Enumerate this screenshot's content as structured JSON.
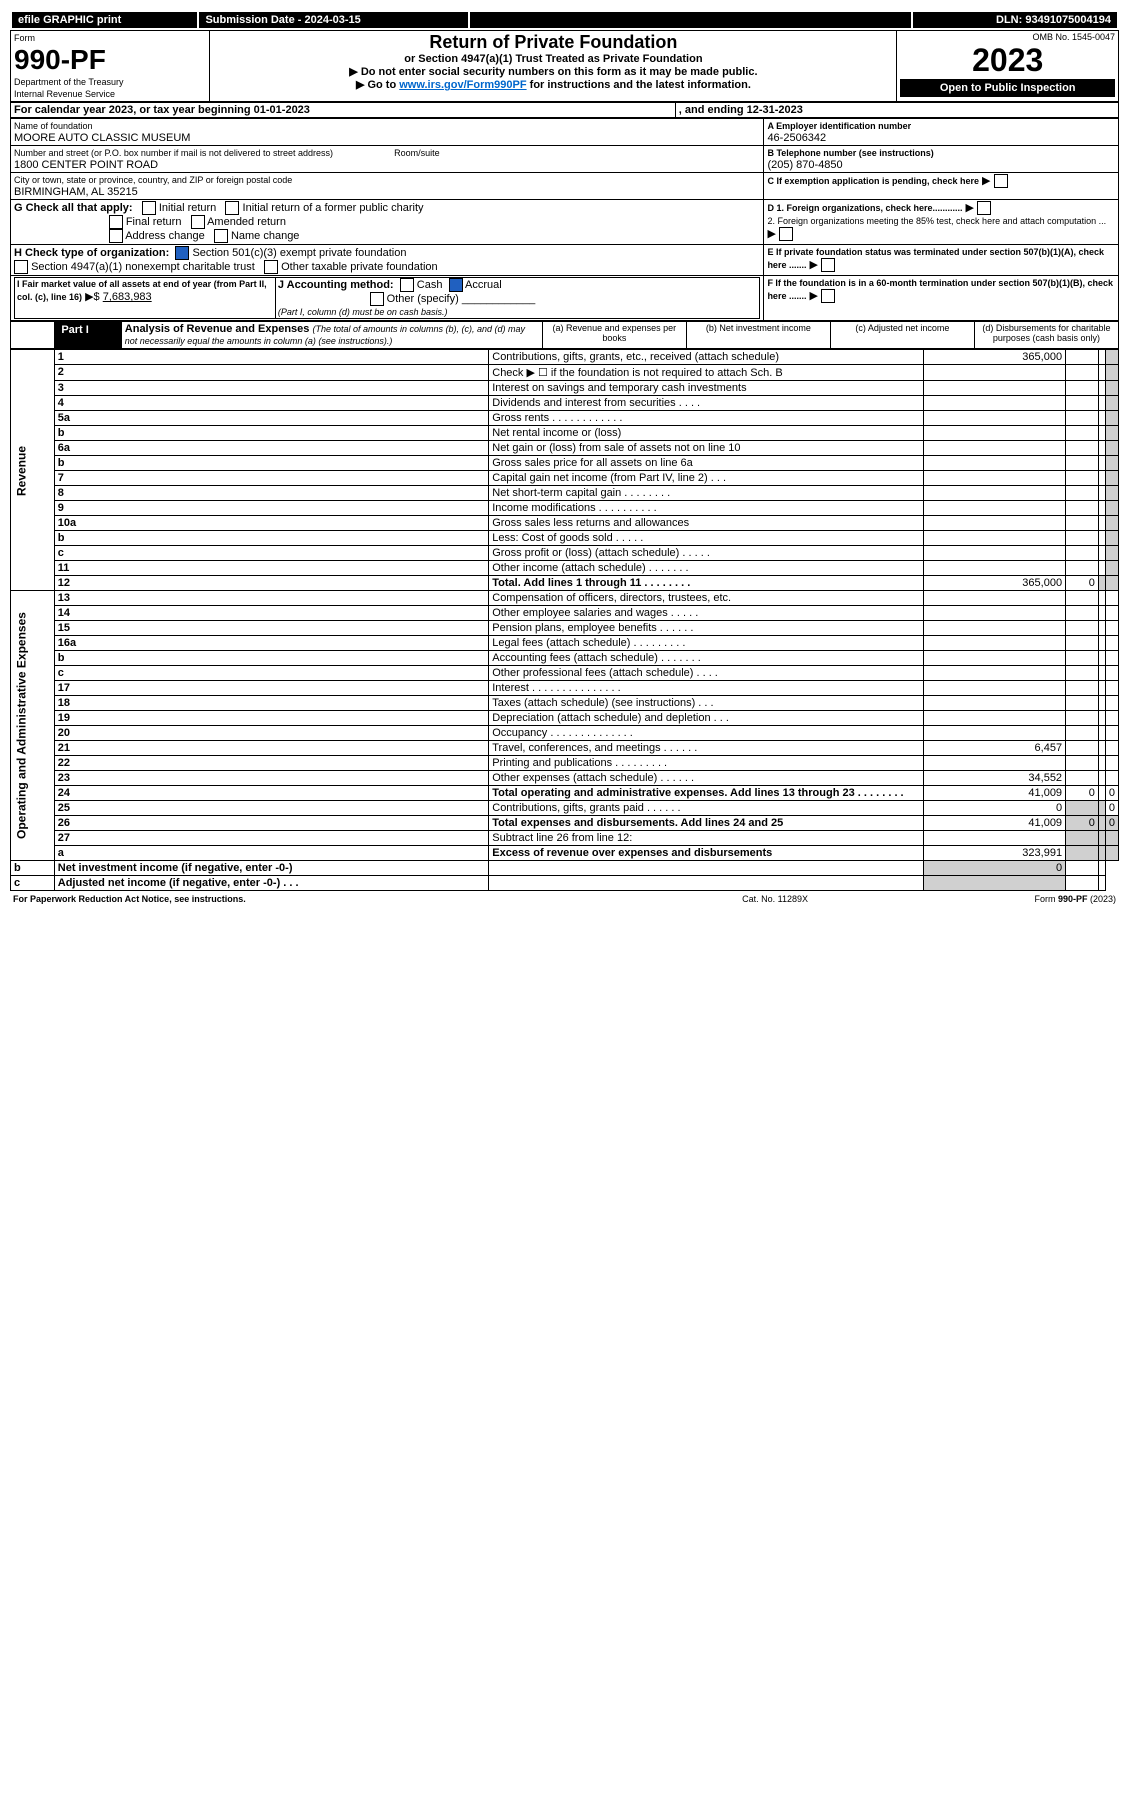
{
  "header": {
    "efile": "efile GRAPHIC print",
    "submission": "Submission Date - 2024-03-15",
    "dln": "DLN: 93491075004194",
    "omb": "OMB No. 1545-0047",
    "form_word": "Form",
    "form_number": "990-PF",
    "dept": "Department of the Treasury",
    "irs": "Internal Revenue Service",
    "title": "Return of Private Foundation",
    "subtitle": "or Section 4947(a)(1) Trust Treated as Private Foundation",
    "instr1": "▶ Do not enter social security numbers on this form as it may be made public.",
    "instr2_a": "▶ Go to ",
    "instr2_link": "www.irs.gov/Form990PF",
    "instr2_b": " for instructions and the latest information.",
    "year": "2023",
    "open": "Open to Public Inspection"
  },
  "cal": {
    "label": "For calendar year 2023, or tax year beginning 01-01-2023",
    "ending": ", and ending 12-31-2023"
  },
  "name": {
    "label": "Name of foundation",
    "value": "MOORE AUTO CLASSIC MUSEUM"
  },
  "ein": {
    "label": "A Employer identification number",
    "value": "46-2506342"
  },
  "address": {
    "street_label": "Number and street (or P.O. box number if mail is not delivered to street address)",
    "street": "1800 CENTER POINT ROAD",
    "room_label": "Room/suite",
    "city_label": "City or town, state or province, country, and ZIP or foreign postal code",
    "city": "BIRMINGHAM, AL  35215"
  },
  "tel": {
    "label": "B Telephone number (see instructions)",
    "value": "(205) 870-4850"
  },
  "C": "C If exemption application is pending, check here",
  "G": {
    "label": "G Check all that apply:",
    "initial": "Initial return",
    "initial_pc": "Initial return of a former public charity",
    "final": "Final return",
    "amended": "Amended return",
    "addr": "Address change",
    "name": "Name change"
  },
  "D": {
    "d1": "D 1. Foreign organizations, check here............",
    "d2": "2. Foreign organizations meeting the 85% test, check here and attach computation ..."
  },
  "H": {
    "label": "H Check type of organization:",
    "opt1": "Section 501(c)(3) exempt private foundation",
    "opt2": "Section 4947(a)(1) nonexempt charitable trust",
    "opt3": "Other taxable private foundation"
  },
  "E": "E If private foundation status was terminated under section 507(b)(1)(A), check here .......",
  "I": {
    "label": "I Fair market value of all assets at end of year (from Part II, col. (c), line 16)",
    "value": "7,683,983"
  },
  "J": {
    "label": "J Accounting method:",
    "cash": "Cash",
    "accrual": "Accrual",
    "other": "Other (specify)",
    "note": "(Part I, column (d) must be on cash basis.)"
  },
  "F": "F If the foundation is in a 60-month termination under section 507(b)(1)(B), check here .......",
  "partI": {
    "label": "Part I",
    "title": "Analysis of Revenue and Expenses",
    "desc": "(The total of amounts in columns (b), (c), and (d) may not necessarily equal the amounts in column (a) (see instructions).)",
    "col_a": "(a) Revenue and expenses per books",
    "col_b": "(b) Net investment income",
    "col_c": "(c) Adjusted net income",
    "col_d": "(d) Disbursements for charitable purposes (cash basis only)"
  },
  "sidebar": {
    "rev": "Revenue",
    "exp": "Operating and Administrative Expenses"
  },
  "rows": [
    {
      "n": "1",
      "txt": "Contributions, gifts, grants, etc., received (attach schedule)",
      "a": "365,000"
    },
    {
      "n": "2",
      "txt": "Check ▶ ☐ if the foundation is not required to attach Sch. B"
    },
    {
      "n": "3",
      "txt": "Interest on savings and temporary cash investments"
    },
    {
      "n": "4",
      "txt": "Dividends and interest from securities   .   .   .   ."
    },
    {
      "n": "5a",
      "txt": "Gross rents   .   .   .   .   .   .   .   .   .   .   .   ."
    },
    {
      "n": "b",
      "txt": "Net rental income or (loss)"
    },
    {
      "n": "6a",
      "txt": "Net gain or (loss) from sale of assets not on line 10"
    },
    {
      "n": "b",
      "txt": "Gross sales price for all assets on line 6a"
    },
    {
      "n": "7",
      "txt": "Capital gain net income (from Part IV, line 2)   .   .   ."
    },
    {
      "n": "8",
      "txt": "Net short-term capital gain   .   .   .   .   .   .   .   ."
    },
    {
      "n": "9",
      "txt": "Income modifications   .   .   .   .   .   .   .   .   .   ."
    },
    {
      "n": "10a",
      "txt": "Gross sales less returns and allowances"
    },
    {
      "n": "b",
      "txt": "Less: Cost of goods sold   .   .   .   .   ."
    },
    {
      "n": "c",
      "txt": "Gross profit or (loss) (attach schedule)   .   .   .   .   ."
    },
    {
      "n": "11",
      "txt": "Other income (attach schedule)   .   .   .   .   .   .   ."
    },
    {
      "n": "12",
      "txt": "Total. Add lines 1 through 11   .   .   .   .   .   .   .   .",
      "a": "365,000",
      "b": "0",
      "bold": true
    },
    {
      "n": "13",
      "txt": "Compensation of officers, directors, trustees, etc."
    },
    {
      "n": "14",
      "txt": "Other employee salaries and wages   .   .   .   .   ."
    },
    {
      "n": "15",
      "txt": "Pension plans, employee benefits   .   .   .   .   .   ."
    },
    {
      "n": "16a",
      "txt": "Legal fees (attach schedule)   .   .   .   .   .   .   .   .   ."
    },
    {
      "n": "b",
      "txt": "Accounting fees (attach schedule)   .   .   .   .   .   .   ."
    },
    {
      "n": "c",
      "txt": "Other professional fees (attach schedule)   .   .   .   ."
    },
    {
      "n": "17",
      "txt": "Interest   .   .   .   .   .   .   .   .   .   .   .   .   .   .   ."
    },
    {
      "n": "18",
      "txt": "Taxes (attach schedule) (see instructions)   .   .   ."
    },
    {
      "n": "19",
      "txt": "Depreciation (attach schedule) and depletion   .   .   ."
    },
    {
      "n": "20",
      "txt": "Occupancy   .   .   .   .   .   .   .   .   .   .   .   .   .   ."
    },
    {
      "n": "21",
      "txt": "Travel, conferences, and meetings   .   .   .   .   .   .",
      "a": "6,457"
    },
    {
      "n": "22",
      "txt": "Printing and publications   .   .   .   .   .   .   .   .   ."
    },
    {
      "n": "23",
      "txt": "Other expenses (attach schedule)   .   .   .   .   .   .",
      "a": "34,552"
    },
    {
      "n": "24",
      "txt": "Total operating and administrative expenses. Add lines 13 through 23   .   .   .   .   .   .   .   .",
      "a": "41,009",
      "b": "0",
      "d": "0",
      "bold": true
    },
    {
      "n": "25",
      "txt": "Contributions, gifts, grants paid   .   .   .   .   .   .",
      "a": "0",
      "d": "0"
    },
    {
      "n": "26",
      "txt": "Total expenses and disbursements. Add lines 24 and 25",
      "a": "41,009",
      "b": "0",
      "d": "0",
      "bold": true
    },
    {
      "n": "27",
      "txt": "Subtract line 26 from line 12:"
    },
    {
      "n": "a",
      "txt": "Excess of revenue over expenses and disbursements",
      "a": "323,991",
      "bold": true
    },
    {
      "n": "b",
      "txt": "Net investment income (if negative, enter -0-)",
      "b": "0",
      "bold": true
    },
    {
      "n": "c",
      "txt": "Adjusted net income (if negative, enter -0-)   .   .   .",
      "bold": true
    }
  ],
  "footer": {
    "left": "For Paperwork Reduction Act Notice, see instructions.",
    "mid": "Cat. No. 11289X",
    "right": "Form 990-PF (2023)"
  }
}
